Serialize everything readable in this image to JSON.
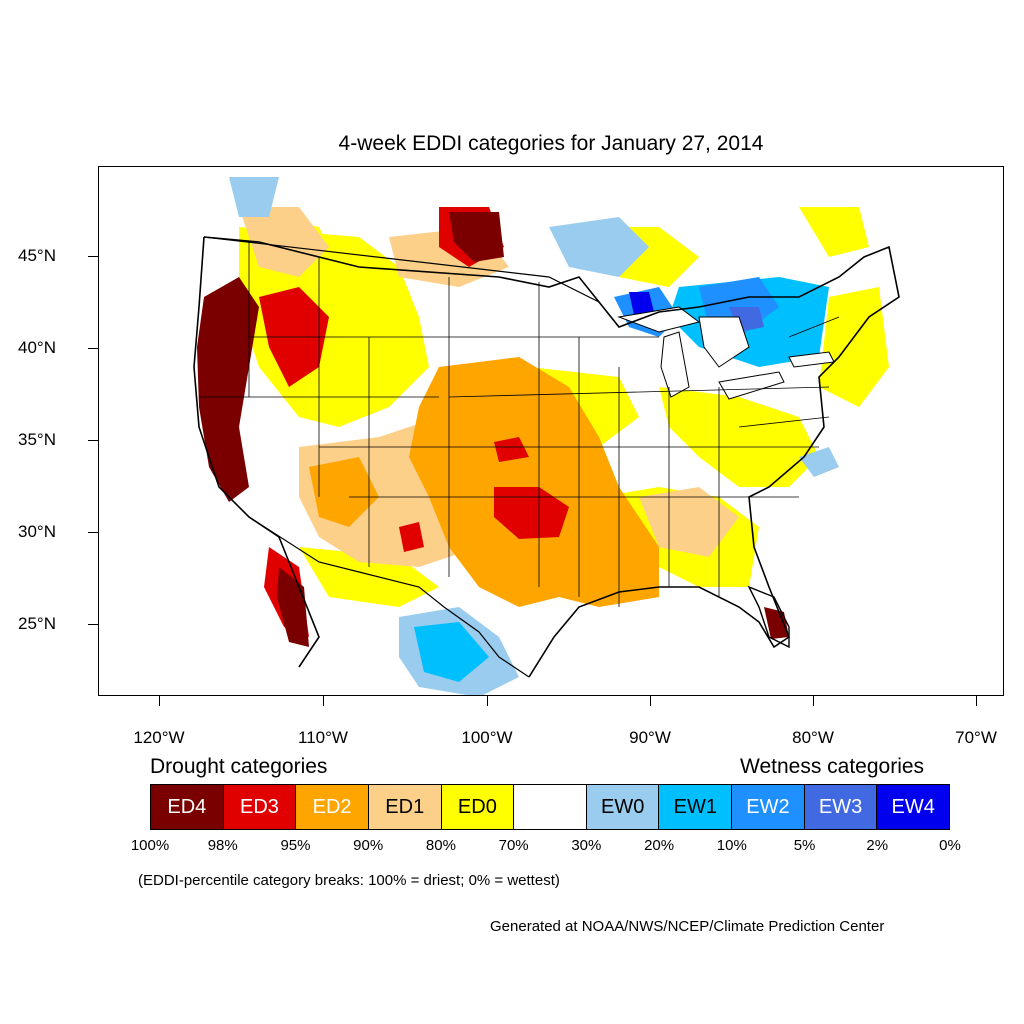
{
  "title": "4-week EDDI categories for January 27, 2014",
  "axes": {
    "lat_labels": [
      "45°N",
      "40°N",
      "35°N",
      "30°N",
      "25°N"
    ],
    "lon_labels": [
      "120°W",
      "110°W",
      "100°W",
      "90°W",
      "80°W",
      "70°W"
    ]
  },
  "legend": {
    "drought_heading": "Drought categories",
    "wetness_heading": "Wetness categories",
    "categories": [
      {
        "label": "ED4",
        "color": "#7a0000",
        "text_color": "#ffffff"
      },
      {
        "label": "ED3",
        "color": "#e00000",
        "text_color": "#ffffff"
      },
      {
        "label": "ED2",
        "color": "#ffa500",
        "text_color": "#ffffff"
      },
      {
        "label": "ED1",
        "color": "#fdd08a",
        "text_color": "#000000"
      },
      {
        "label": "ED0",
        "color": "#ffff00",
        "text_color": "#000000"
      },
      {
        "label": "",
        "color": "#ffffff",
        "text_color": "#000000"
      },
      {
        "label": "EW0",
        "color": "#99ccee",
        "text_color": "#000000"
      },
      {
        "label": "EW1",
        "color": "#00bfff",
        "text_color": "#000000"
      },
      {
        "label": "EW2",
        "color": "#1e90ff",
        "text_color": "#ffffff"
      },
      {
        "label": "EW3",
        "color": "#4169e1",
        "text_color": "#ffffff"
      },
      {
        "label": "EW4",
        "color": "#0000ee",
        "text_color": "#ffffff"
      }
    ],
    "breaks": [
      "100%",
      "98%",
      "95%",
      "90%",
      "80%",
      "70%",
      "30%",
      "20%",
      "10%",
      "5%",
      "2%",
      "0%"
    ]
  },
  "note": "(EDDI-percentile category breaks: 100% = driest; 0% = wettest)",
  "credit": "Generated at NOAA/NWS/NCEP/Climate Prediction Center"
}
